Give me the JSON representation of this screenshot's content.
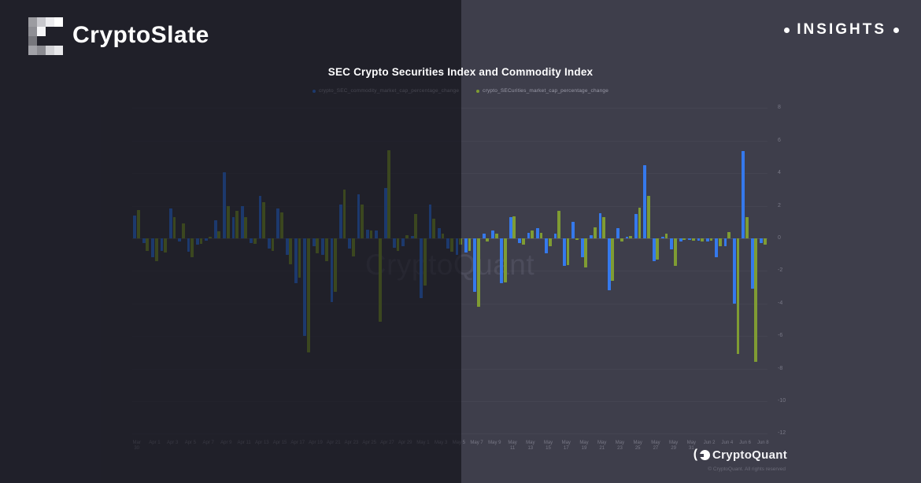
{
  "branding": {
    "logo_text": "CryptoSlate",
    "insights_label": "INSIGHTS"
  },
  "watermark": "CryptoQuant",
  "footer": {
    "logo_text": "CryptoQuant",
    "copyright": "© CryptoQuant. All rights reserved"
  },
  "colors": {
    "background_left": "#20202a",
    "background_right": "#3e3e4b",
    "series_blue": "#3579ec",
    "series_green": "#7f9c33"
  },
  "chart_data": {
    "type": "bar",
    "title": "SEC Crypto Securities Index and Commodity Index",
    "ylabel": "",
    "xlabel": "",
    "ylim": [
      -12.4,
      8.4
    ],
    "y_ticks": [
      8,
      6,
      4,
      2,
      0,
      -2,
      -4,
      -6,
      -8,
      -10,
      -12
    ],
    "x_label_every": 2,
    "grid": true,
    "legend_position": "top",
    "categories": [
      "Mar 30",
      "Mar 31",
      "Apr 1",
      "Apr 2",
      "Apr 3",
      "Apr 4",
      "Apr 5",
      "Apr 6",
      "Apr 7",
      "Apr 8",
      "Apr 9",
      "Apr 10",
      "Apr 11",
      "Apr 12",
      "Apr 13",
      "Apr 14",
      "Apr 15",
      "Apr 16",
      "Apr 17",
      "Apr 18",
      "Apr 19",
      "Apr 20",
      "Apr 21",
      "Apr 22",
      "Apr 23",
      "Apr 24",
      "Apr 25",
      "Apr 26",
      "Apr 27",
      "Apr 28",
      "Apr 29",
      "Apr 30",
      "May 1",
      "May 2",
      "May 3",
      "May 4",
      "May 5",
      "May 6",
      "May 7",
      "May 8",
      "May 9",
      "May 10",
      "May 11",
      "May 12",
      "May 13",
      "May 14",
      "May 15",
      "May 16",
      "May 17",
      "May 18",
      "May 19",
      "May 20",
      "May 21",
      "May 22",
      "May 23",
      "May 24",
      "May 25",
      "May 26",
      "May 27",
      "May 28",
      "May 29",
      "May 30",
      "May 31",
      "Jun 1",
      "Jun 2",
      "Jun 3",
      "Jun 4",
      "Jun 5",
      "Jun 6",
      "Jun 7",
      "Jun 8"
    ],
    "series": [
      {
        "name": "crypto_SEC_commodity_market_cap_percentage_change",
        "color": "#3579ec",
        "values": [
          1.4,
          -0.3,
          -1.15,
          -0.75,
          1.85,
          -0.2,
          -0.8,
          -0.4,
          -0.15,
          1.1,
          4.05,
          1.3,
          2.0,
          -0.3,
          2.6,
          -0.65,
          1.85,
          -1.0,
          -2.75,
          -6.0,
          -0.5,
          -1.0,
          -3.9,
          2.1,
          -0.65,
          2.7,
          0.55,
          0.5,
          3.1,
          -0.6,
          -0.5,
          0.15,
          -3.65,
          2.1,
          0.65,
          -0.65,
          -1.0,
          -0.85,
          -3.3,
          0.3,
          0.5,
          -2.75,
          1.3,
          -0.3,
          0.35,
          0.65,
          -0.9,
          0.3,
          -1.7,
          1.0,
          -1.15,
          0.2,
          1.55,
          -3.2,
          0.65,
          0.1,
          1.5,
          4.5,
          -1.4,
          0.1,
          -0.7,
          -0.2,
          -0.1,
          -0.15,
          -0.2,
          -1.15,
          -0.5,
          -4.0,
          5.35,
          -3.1,
          -0.3
        ]
      },
      {
        "name": "crypto_SECurities_market_cap_percentage_change",
        "color": "#7f9c33",
        "values": [
          1.75,
          -0.75,
          -1.4,
          -0.85,
          1.3,
          0.9,
          -1.15,
          -0.35,
          0.1,
          0.45,
          2.0,
          1.7,
          1.3,
          -0.35,
          2.2,
          -0.75,
          1.6,
          -1.6,
          -2.4,
          -7.0,
          -0.9,
          -1.4,
          -3.3,
          3.0,
          -1.1,
          2.1,
          0.5,
          -5.1,
          5.4,
          -0.75,
          0.2,
          1.5,
          -2.9,
          1.2,
          0.3,
          -0.8,
          -0.4,
          -0.75,
          -4.2,
          -0.2,
          0.3,
          -2.7,
          1.35,
          -0.4,
          0.5,
          0.35,
          -0.5,
          1.7,
          -1.65,
          -0.1,
          -1.8,
          0.7,
          1.3,
          -2.6,
          -0.2,
          0.15,
          1.9,
          2.6,
          -1.3,
          0.3,
          -1.7,
          -0.1,
          -0.15,
          -0.2,
          -0.15,
          -0.5,
          0.4,
          -7.1,
          1.3,
          -7.6,
          -0.4
        ]
      }
    ]
  }
}
